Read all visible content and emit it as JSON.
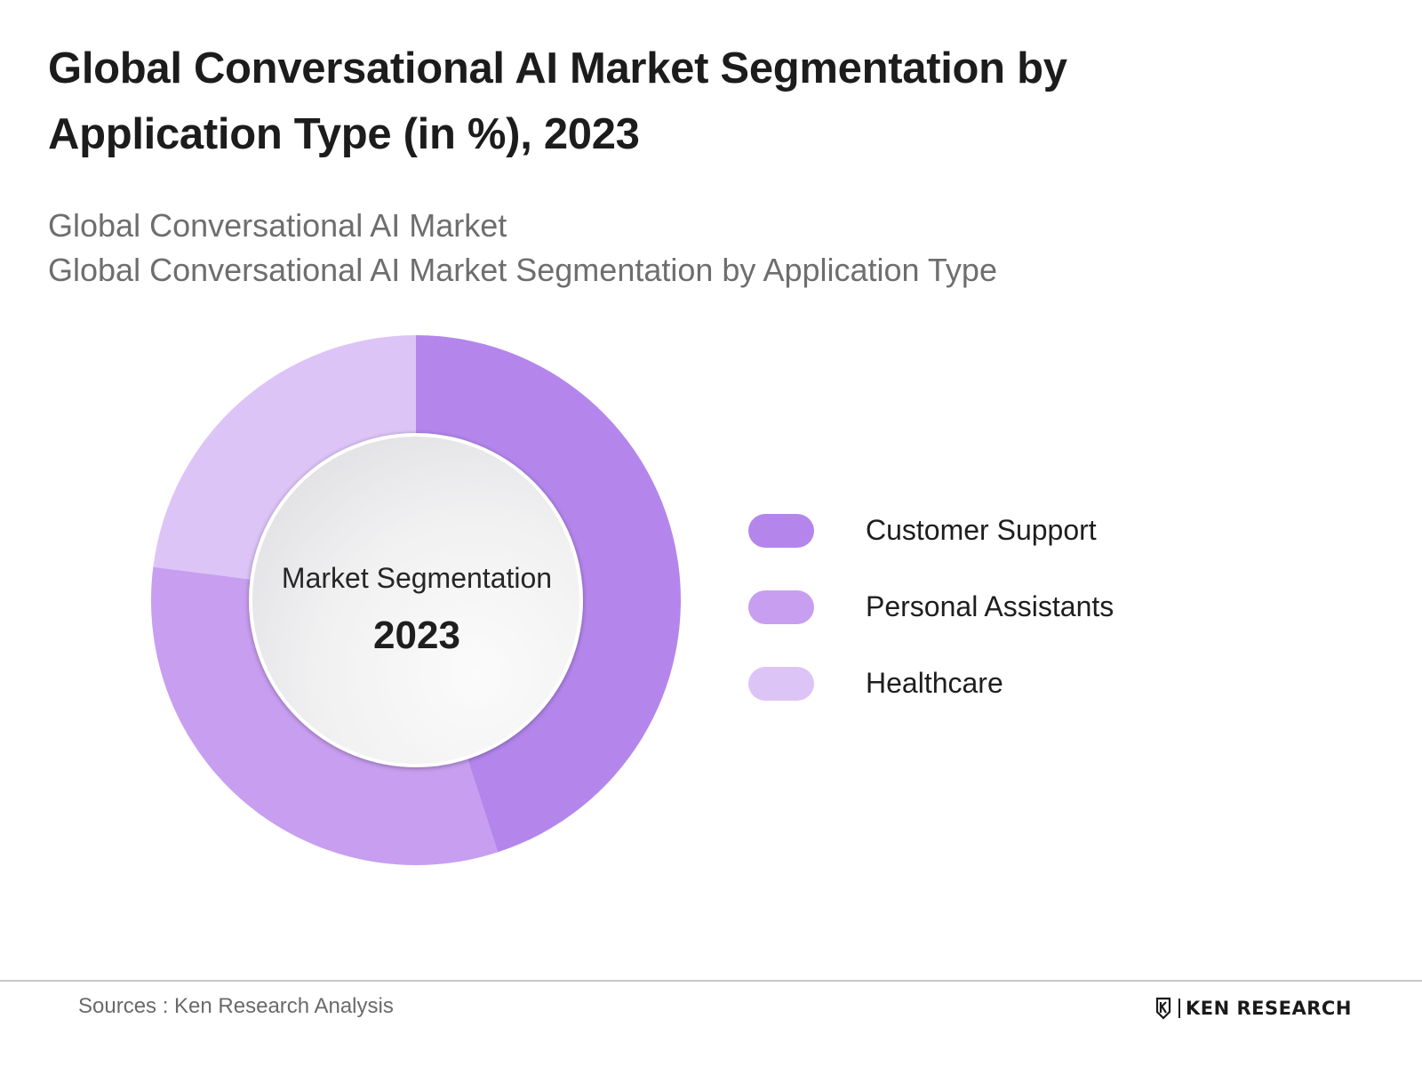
{
  "title": "Global Conversational AI Market Segmentation by Application Type (in %), 2023",
  "subtitles": [
    "Global Conversational AI Market",
    "Global Conversational AI Market Segmentation by Application Type"
  ],
  "center": {
    "label": "Market Segmentation",
    "year": "2023"
  },
  "footer": {
    "sources": "Sources : Ken Research Analysis",
    "brand": "KEN RESEARCH"
  },
  "colors": {
    "customer_support": "#b486ec",
    "personal_assistants": "#c89ef0",
    "healthcare": "#ddc4f7"
  },
  "chart_data": {
    "type": "pie",
    "variant": "donut",
    "categories": [
      "Customer Support",
      "Personal Assistants",
      "Healthcare"
    ],
    "values": [
      45,
      32,
      23
    ],
    "unit": "%",
    "colors": [
      "#b486ec",
      "#c89ef0",
      "#ddc4f7"
    ],
    "legend_position": "right",
    "center_text": [
      "Market Segmentation",
      "2023"
    ]
  }
}
